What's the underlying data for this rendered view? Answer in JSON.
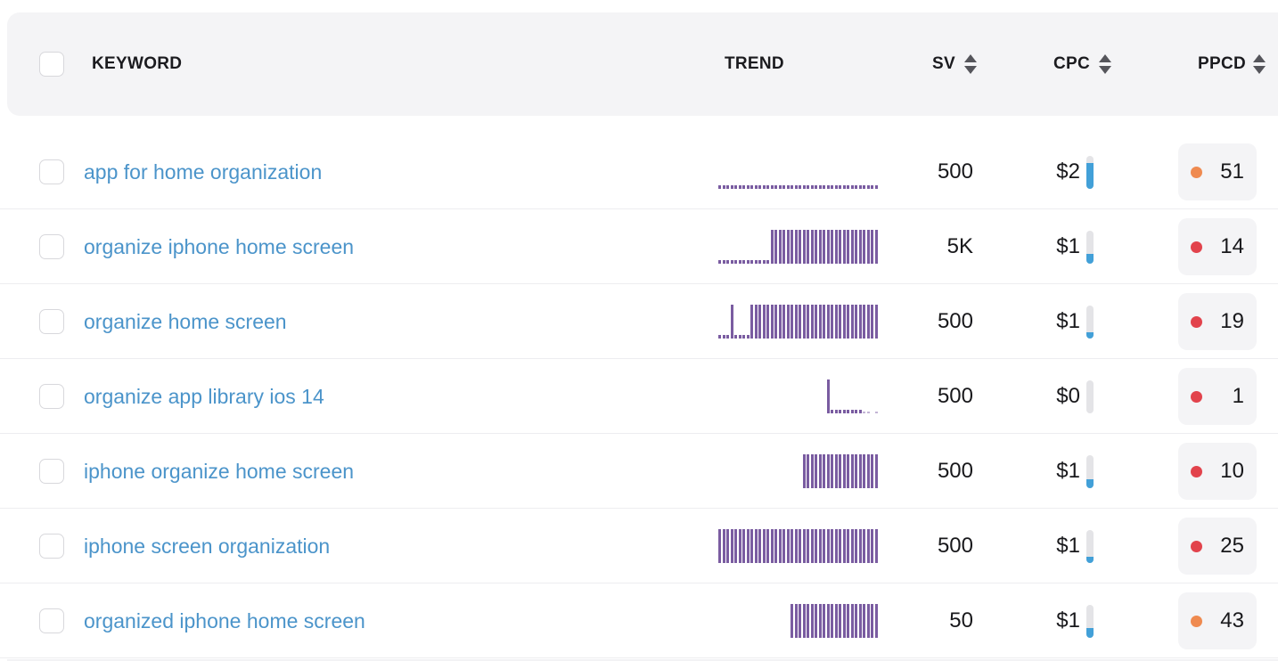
{
  "header": {
    "select_all": true,
    "columns": {
      "keyword": {
        "label": "KEYWORD",
        "sortable": false
      },
      "trend": {
        "label": "TREND",
        "sortable": false
      },
      "sv": {
        "label": "SV",
        "sortable": true
      },
      "cpc": {
        "label": "CPC",
        "sortable": true
      },
      "ppcd": {
        "label": "PPCD",
        "sortable": true
      }
    }
  },
  "colors": {
    "header_bg": "#f4f4f6",
    "keyword_link": "#4b94ca",
    "trend_purple": "#7a5ca1",
    "cpc_fill_blue": "#42a0d8",
    "cpc_track_gray": "#e4e4e7",
    "dot_red": "#e2434c",
    "dot_orange": "#ef8a50",
    "badge_bg": "#f4f4f6"
  },
  "table": {
    "rows": [
      {
        "keyword": "app for home organization",
        "sv": "500",
        "cpc": "$2",
        "cpc_fill": 0.78,
        "ppcd": "51",
        "ppcd_level": "orange",
        "trend": [
          0.1,
          0.1,
          0.1,
          0.1,
          0.1,
          0.1,
          0.1,
          0.1,
          0.1,
          0.1,
          0.1,
          0.1,
          0.1,
          0.1,
          0.1,
          0.1,
          0.1,
          0.1,
          0.1,
          0.1,
          0.1,
          0.1,
          0.1,
          0.1,
          0.1,
          0.1,
          0.1,
          0.1,
          0.1,
          0.1,
          0.1,
          0.1,
          0.1,
          0.1,
          0.1,
          0.1,
          0.1,
          0.1,
          0.1,
          0.1
        ]
      },
      {
        "keyword": "organize iphone home screen",
        "sv": "5K",
        "cpc": "$1",
        "cpc_fill": 0.3,
        "ppcd": "14",
        "ppcd_level": "red",
        "trend": [
          0.1,
          0.1,
          0.1,
          0.1,
          0.1,
          0.1,
          0.1,
          0.1,
          0.1,
          0.1,
          0.1,
          0.1,
          0.1,
          1,
          1,
          1,
          1,
          1,
          1,
          1,
          1,
          1,
          1,
          1,
          1,
          1,
          1,
          1,
          1,
          1,
          1,
          1,
          1,
          1,
          1,
          1,
          1,
          1,
          1,
          1
        ]
      },
      {
        "keyword": "organize home screen",
        "sv": "500",
        "cpc": "$1",
        "cpc_fill": 0.18,
        "ppcd": "19",
        "ppcd_level": "red",
        "trend": [
          0.1,
          0.1,
          0.1,
          1,
          0.1,
          0.1,
          0.1,
          0.1,
          1,
          1,
          1,
          1,
          1,
          1,
          1,
          1,
          1,
          1,
          1,
          1,
          1,
          1,
          1,
          1,
          1,
          1,
          1,
          1,
          1,
          1,
          1,
          1,
          1,
          1,
          1,
          1,
          1,
          1,
          1,
          1
        ]
      },
      {
        "keyword": "organize app library ios 14",
        "sv": "500",
        "cpc": "$0",
        "cpc_fill": 0,
        "ppcd": "1",
        "ppcd_level": "red",
        "trend": [
          0,
          0,
          0,
          0,
          0,
          0,
          0,
          0,
          0,
          0,
          0,
          0,
          0,
          0,
          0,
          0,
          0,
          0,
          0,
          0,
          0,
          0,
          0,
          0,
          0,
          0,
          0,
          1,
          0.1,
          0.1,
          0.1,
          0.1,
          0.1,
          0.1,
          0.1,
          0.1,
          0.04,
          0.04,
          0,
          0.04
        ]
      },
      {
        "keyword": "iphone organize home screen",
        "sv": "500",
        "cpc": "$1",
        "cpc_fill": 0.28,
        "ppcd": "10",
        "ppcd_level": "red",
        "trend": [
          0,
          0,
          0,
          0,
          0,
          0,
          0,
          0,
          0,
          0,
          0,
          0,
          0,
          0,
          0,
          0,
          0,
          0,
          0,
          0,
          0,
          1,
          1,
          1,
          1,
          1,
          1,
          1,
          1,
          1,
          1,
          1,
          1,
          1,
          1,
          1,
          1,
          1,
          1,
          1
        ]
      },
      {
        "keyword": "iphone screen organization",
        "sv": "500",
        "cpc": "$1",
        "cpc_fill": 0.2,
        "ppcd": "25",
        "ppcd_level": "red",
        "trend": [
          1,
          1,
          1,
          1,
          1,
          1,
          1,
          1,
          1,
          1,
          1,
          1,
          1,
          1,
          1,
          1,
          1,
          1,
          1,
          1,
          1,
          1,
          1,
          1,
          1,
          1,
          1,
          1,
          1,
          1,
          1,
          1,
          1,
          1,
          1,
          1,
          1,
          1,
          1,
          1
        ]
      },
      {
        "keyword": "organized iphone home screen",
        "sv": "50",
        "cpc": "$1",
        "cpc_fill": 0.3,
        "ppcd": "43",
        "ppcd_level": "orange",
        "trend": [
          0,
          0,
          0,
          0,
          0,
          0,
          0,
          0,
          0,
          0,
          0,
          0,
          0,
          0,
          0,
          0,
          0,
          0,
          1,
          1,
          1,
          1,
          1,
          1,
          1,
          1,
          1,
          1,
          1,
          1,
          1,
          1,
          1,
          1,
          1,
          1,
          1,
          1,
          1,
          1
        ]
      }
    ]
  }
}
